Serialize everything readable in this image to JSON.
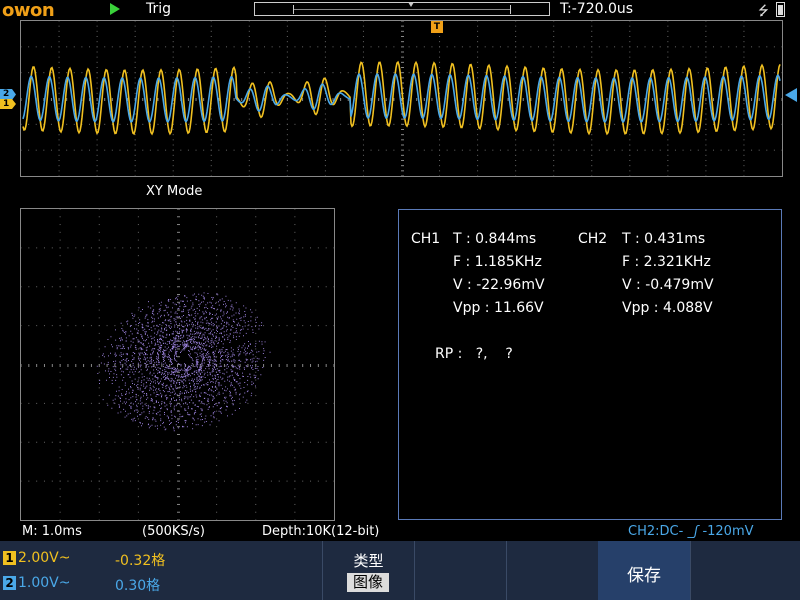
{
  "topbar": {
    "logo": "owon",
    "status": "Trig",
    "time_offset": "T:-720.0us",
    "usb_icon": "usb-icon",
    "battery_icon": "battery-icon"
  },
  "markers": {
    "trigger": "T",
    "ch1": "1",
    "ch2": "2"
  },
  "mode_label": "XY  Mode",
  "measurements": {
    "ch1": {
      "name": "CH1",
      "T": "T : 0.844ms",
      "F": "F : 1.185KHz",
      "V": "V : -22.96mV",
      "Vpp": "Vpp : 11.66V"
    },
    "ch2": {
      "name": "CH2",
      "T": "T : 0.431ms",
      "F": "F : 2.321KHz",
      "V": "V : -0.479mV",
      "Vpp": "Vpp : 4.088V"
    },
    "rp": "RP :   ?,    ?"
  },
  "info_line": {
    "timebase": "M: 1.0ms",
    "sample_rate": "(500KS/s)",
    "depth": "Depth:10K(12-bit)",
    "coupling": "CH2:DC-",
    "trigger_level": "-120mV"
  },
  "menubar": {
    "ch1": {
      "num": "1",
      "scale": "2.00V~",
      "offset": "-0.32格"
    },
    "ch2": {
      "num": "2",
      "scale": "1.00V~",
      "offset": "0.30格"
    },
    "type_label": "类型",
    "type_value": "图像",
    "save": "保存"
  },
  "colors": {
    "ch1": "#f0c020",
    "ch2": "#4aa8e8",
    "xy": "#a58aea",
    "accent": "#f0a018",
    "menu": "#1e2a40"
  }
}
